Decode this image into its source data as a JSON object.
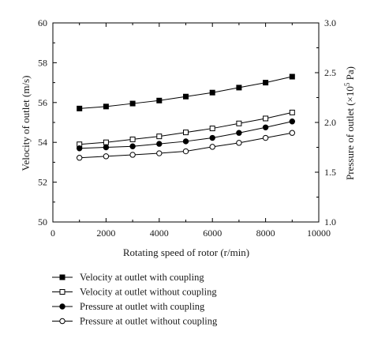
{
  "chart_data": {
    "type": "line",
    "xlabel": "Rotating speed of rotor (r/min)",
    "ylabel_left": "Velocity of outlet (m/s)",
    "ylabel_right_prefix": "Pressure of outlet (×10",
    "ylabel_right_sup": "5",
    "ylabel_right_suffix": " Pa)",
    "xlim": [
      0,
      10000
    ],
    "ylim_left": [
      50,
      60
    ],
    "ylim_right": [
      1.0,
      3.0
    ],
    "xticks": [
      "0",
      "2000",
      "4000",
      "6000",
      "8000",
      "10000"
    ],
    "yticks_left": [
      "50",
      "52",
      "54",
      "56",
      "58",
      "60"
    ],
    "yticks_right": [
      "1.0",
      "1.5",
      "2.0",
      "2.5",
      "3.0"
    ],
    "grid": false,
    "legend_position": "bottom",
    "x": [
      1000,
      2000,
      3000,
      4000,
      5000,
      6000,
      7000,
      8000,
      9000
    ],
    "series": [
      {
        "name": "Velocity at outlet with coupling",
        "axis": "left",
        "marker": "filled-square",
        "values": [
          55.7,
          55.8,
          55.95,
          56.1,
          56.3,
          56.5,
          56.75,
          57.0,
          57.3
        ]
      },
      {
        "name": "Velocity at outlet without coupling",
        "axis": "left",
        "marker": "open-square",
        "values": [
          53.9,
          54.0,
          54.15,
          54.3,
          54.5,
          54.7,
          54.95,
          55.2,
          55.5
        ]
      },
      {
        "name": "Pressure at outlet with coupling",
        "axis": "right",
        "marker": "filled-circle",
        "values": [
          1.74,
          1.75,
          1.76,
          1.785,
          1.81,
          1.845,
          1.895,
          1.95,
          2.01
        ]
      },
      {
        "name": "Pressure at outlet without coupling",
        "axis": "right",
        "marker": "open-circle",
        "values": [
          1.645,
          1.66,
          1.675,
          1.69,
          1.71,
          1.755,
          1.795,
          1.845,
          1.895
        ]
      }
    ]
  }
}
